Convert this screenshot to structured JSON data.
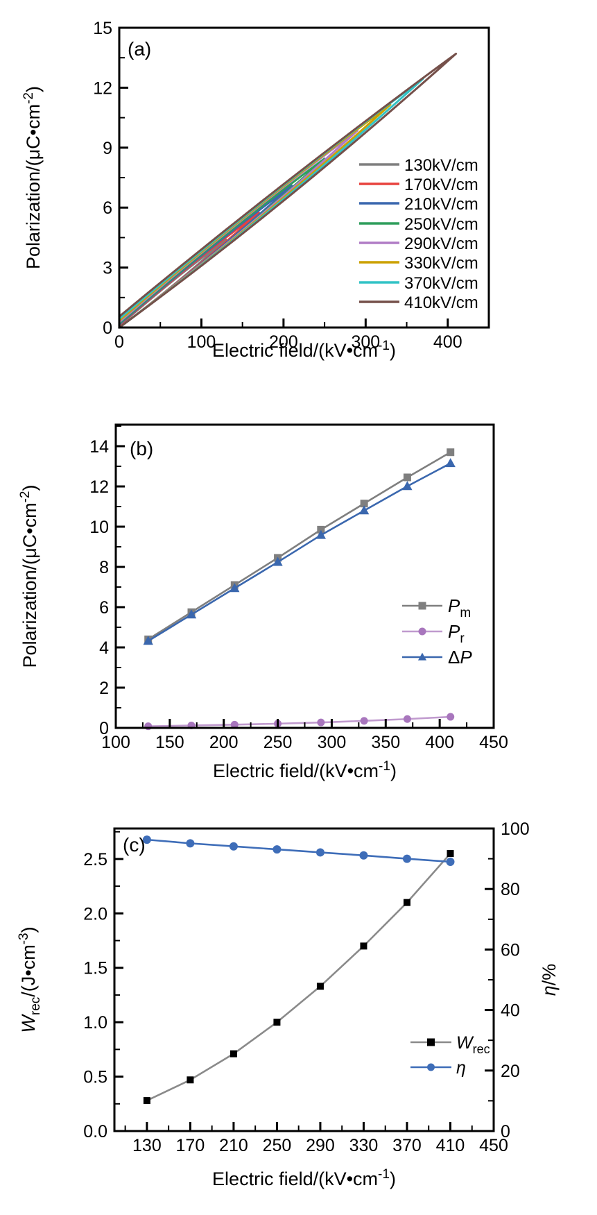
{
  "figure": {
    "background": "#ffffff",
    "panels": [
      "(a)",
      "(b)",
      "(c)"
    ]
  },
  "chart_data": [
    {
      "id": "a",
      "type": "line",
      "subtype": "pe-hysteresis-loops",
      "panel_label": "(a)",
      "xlabel_parts": [
        {
          "t": "Electric field/(kV•cm"
        },
        {
          "t": "-1",
          "sup": true
        },
        {
          "t": ")"
        }
      ],
      "ylabel_parts": [
        {
          "t": "Polarization/(μC•cm"
        },
        {
          "t": "-2",
          "sup": true
        },
        {
          "t": ")"
        }
      ],
      "xlim": [
        0,
        450
      ],
      "ylim": [
        0,
        15
      ],
      "xticks": {
        "values": [
          0,
          100,
          200,
          300,
          400
        ],
        "labels": [
          "0",
          "100",
          "200",
          "300",
          "400"
        ],
        "minor": [
          50,
          150,
          250,
          350,
          450
        ]
      },
      "yticks": {
        "values": [
          0,
          3,
          6,
          9,
          12,
          15
        ],
        "labels": [
          "0",
          "3",
          "6",
          "9",
          "12",
          "15"
        ],
        "minor": [
          1.5,
          4.5,
          7.5,
          10.5,
          13.5
        ]
      },
      "grid": false,
      "legend_position": "right-middle",
      "loops": [
        {
          "label": "130kV/cm",
          "color": "#7f7f7f",
          "e_max": 130,
          "p_max": 4.4,
          "p_r": 0.08
        },
        {
          "label": "170kV/cm",
          "color": "#e8423e",
          "e_max": 170,
          "p_max": 5.75,
          "p_r": 0.12
        },
        {
          "label": "210kV/cm",
          "color": "#3a67ae",
          "e_max": 210,
          "p_max": 7.1,
          "p_r": 0.16
        },
        {
          "label": "250kV/cm",
          "color": "#2f9e5c",
          "e_max": 250,
          "p_max": 8.45,
          "p_r": 0.21
        },
        {
          "label": "290kV/cm",
          "color": "#b07cc5",
          "e_max": 290,
          "p_max": 9.85,
          "p_r": 0.27
        },
        {
          "label": "330kV/cm",
          "color": "#cba100",
          "e_max": 330,
          "p_max": 11.15,
          "p_r": 0.35
        },
        {
          "label": "370kV/cm",
          "color": "#32c3c6",
          "e_max": 370,
          "p_max": 12.45,
          "p_r": 0.44
        },
        {
          "label": "410kV/cm",
          "color": "#75504a",
          "e_max": 410,
          "p_max": 13.7,
          "p_r": 0.55
        }
      ],
      "legend": {
        "items": [
          {
            "parts": [
              {
                "t": "130kV/cm"
              }
            ],
            "line_color": "#7f7f7f",
            "marker": "none"
          },
          {
            "parts": [
              {
                "t": "170kV/cm"
              }
            ],
            "line_color": "#e8423e",
            "marker": "none"
          },
          {
            "parts": [
              {
                "t": "210kV/cm"
              }
            ],
            "line_color": "#3a67ae",
            "marker": "none"
          },
          {
            "parts": [
              {
                "t": "250kV/cm"
              }
            ],
            "line_color": "#2f9e5c",
            "marker": "none"
          },
          {
            "parts": [
              {
                "t": "290kV/cm"
              }
            ],
            "line_color": "#b07cc5",
            "marker": "none"
          },
          {
            "parts": [
              {
                "t": "330kV/cm"
              }
            ],
            "line_color": "#cba100",
            "marker": "none"
          },
          {
            "parts": [
              {
                "t": "370kV/cm"
              }
            ],
            "line_color": "#32c3c6",
            "marker": "none"
          },
          {
            "parts": [
              {
                "t": "410kV/cm"
              }
            ],
            "line_color": "#75504a",
            "marker": "none"
          }
        ]
      }
    },
    {
      "id": "b",
      "type": "line",
      "panel_label": "(b)",
      "xlabel_parts": [
        {
          "t": "Electric field/(kV•cm"
        },
        {
          "t": "-1",
          "sup": true
        },
        {
          "t": ")"
        }
      ],
      "ylabel_parts": [
        {
          "t": "Polarization/(μC•cm"
        },
        {
          "t": "-2",
          "sup": true
        },
        {
          "t": ")"
        }
      ],
      "xlim": [
        100,
        450
      ],
      "ylim": [
        0,
        15.07
      ],
      "xticks": {
        "values": [
          100,
          150,
          200,
          250,
          300,
          350,
          400,
          450
        ],
        "labels": [
          "100",
          "150",
          "200",
          "250",
          "300",
          "350",
          "400",
          "450"
        ],
        "minor": [
          125,
          175,
          225,
          275,
          325,
          375,
          425
        ]
      },
      "yticks": {
        "values": [
          0,
          2,
          4,
          6,
          8,
          10,
          12,
          14
        ],
        "labels": [
          "0",
          "2",
          "4",
          "6",
          "8",
          "10",
          "12",
          "14"
        ],
        "minor": [
          1,
          3,
          5,
          7,
          9,
          11,
          13,
          15
        ]
      },
      "grid": false,
      "x": [
        130,
        170,
        210,
        250,
        290,
        330,
        370,
        410
      ],
      "series": [
        {
          "name": "Pm",
          "values": [
            4.4,
            5.75,
            7.1,
            8.45,
            9.85,
            11.15,
            12.45,
            13.7
          ],
          "color": "#7f7f7f",
          "marker": "square",
          "marker_color": "#7f7f7f",
          "marker_size": 11
        },
        {
          "name": "dP",
          "values": [
            4.32,
            5.63,
            6.94,
            8.24,
            9.58,
            10.8,
            12.01,
            13.15
          ],
          "color": "#3a67ae",
          "marker": "triangle",
          "marker_color": "#3a67ae",
          "marker_size": 13
        },
        {
          "name": "Pr",
          "values": [
            0.08,
            0.12,
            0.16,
            0.21,
            0.27,
            0.35,
            0.44,
            0.55
          ],
          "color": "#c09ace",
          "marker": "circle",
          "marker_color": "#a876bd",
          "marker_size": 11
        }
      ],
      "legend": {
        "items": [
          {
            "parts": [
              {
                "t": "P",
                "i": true
              },
              {
                "t": "m",
                "sub": true
              }
            ],
            "line_color": "#7f7f7f",
            "marker": "square",
            "marker_color": "#7f7f7f"
          },
          {
            "parts": [
              {
                "t": "P",
                "i": true
              },
              {
                "t": "r",
                "sub": true
              }
            ],
            "line_color": "#c09ace",
            "marker": "circle",
            "marker_color": "#a876bd"
          },
          {
            "parts": [
              {
                "t": "Δ"
              },
              {
                "t": "P",
                "i": true
              }
            ],
            "line_color": "#3a67ae",
            "marker": "triangle",
            "marker_color": "#3a67ae"
          }
        ]
      }
    },
    {
      "id": "c",
      "type": "line",
      "subtype": "dual-axis",
      "panel_label": "(c)",
      "xlabel_parts": [
        {
          "t": "Electric field/(kV•cm"
        },
        {
          "t": "-1",
          "sup": true
        },
        {
          "t": ")"
        }
      ],
      "ylabel_parts": [
        {
          "t": "W",
          "i": true
        },
        {
          "t": "rec",
          "sub": true
        },
        {
          "t": "/(J•cm"
        },
        {
          "t": "-3",
          "sup": true
        },
        {
          "t": ")"
        }
      ],
      "y2label_parts": [
        {
          "t": "η",
          "i": true
        },
        {
          "t": "/%"
        }
      ],
      "xlim": [
        100,
        450
      ],
      "ylim": [
        0,
        2.78
      ],
      "y2lim": [
        0,
        100
      ],
      "xticks": {
        "values": [
          130,
          170,
          210,
          250,
          290,
          330,
          370,
          410,
          450
        ],
        "labels": [
          "130",
          "170",
          "210",
          "250",
          "290",
          "330",
          "370",
          "410",
          "450"
        ],
        "minor": [
          110,
          150,
          190,
          230,
          270,
          310,
          350,
          390,
          430
        ]
      },
      "yticks": {
        "values": [
          0,
          0.5,
          1.0,
          1.5,
          2.0,
          2.5
        ],
        "labels": [
          "0.0",
          "0.5",
          "1.0",
          "1.5",
          "2.0",
          "2.5"
        ],
        "minor": [
          0.25,
          0.75,
          1.25,
          1.75,
          2.25,
          2.75
        ]
      },
      "y2ticks": {
        "values": [
          0,
          20,
          40,
          60,
          80,
          100
        ],
        "labels": [
          "0",
          "20",
          "40",
          "60",
          "80",
          "100"
        ],
        "minor": [
          10,
          30,
          50,
          70,
          90
        ]
      },
      "grid": false,
      "x": [
        130,
        170,
        210,
        250,
        290,
        330,
        370,
        410
      ],
      "series": [
        {
          "name": "Wrec",
          "axis": "left",
          "values": [
            0.28,
            0.47,
            0.71,
            1.0,
            1.33,
            1.7,
            2.1,
            2.55
          ],
          "color": "#8a8a8a",
          "marker": "square",
          "marker_color": "#000000",
          "marker_size": 10
        },
        {
          "name": "eta",
          "axis": "right",
          "values": [
            96.3,
            95.1,
            94.1,
            93.1,
            92.1,
            91.1,
            90.0,
            89.0
          ],
          "color": "#3e6db8",
          "marker": "circle",
          "marker_color": "#3e6db8",
          "marker_size": 12
        }
      ],
      "legend": {
        "items": [
          {
            "parts": [
              {
                "t": "W",
                "i": true
              },
              {
                "t": "rec",
                "sub": true
              }
            ],
            "line_color": "#8a8a8a",
            "marker": "square",
            "marker_color": "#000000"
          },
          {
            "parts": [
              {
                "t": "η",
                "i": true
              }
            ],
            "line_color": "#3e6db8",
            "marker": "circle",
            "marker_color": "#3e6db8"
          }
        ]
      }
    }
  ]
}
